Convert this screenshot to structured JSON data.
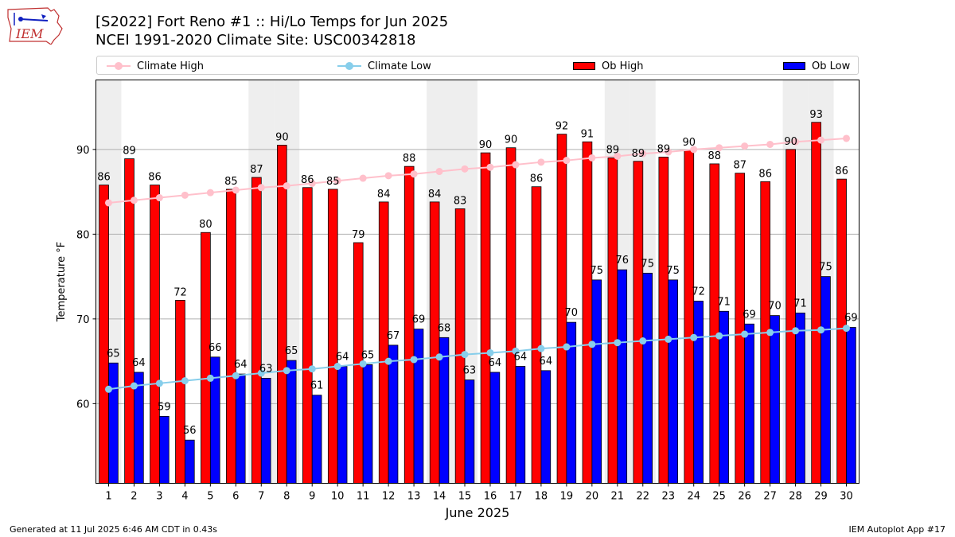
{
  "header": {
    "title_line1": "[S2022] Fort Reno #1 :: Hi/Lo Temps for Jun 2025",
    "title_line2": "NCEI 1991-2020 Climate Site: USC00342818",
    "logo_text": "IEM"
  },
  "legend": {
    "climate_high": "Climate High",
    "climate_low": "Climate Low",
    "ob_high": "Ob High",
    "ob_low": "Ob Low"
  },
  "colors": {
    "ob_high": "#ff0000",
    "ob_low": "#0000ff",
    "climate_high": "#ffc0cb",
    "climate_low": "#87ceeb",
    "weekend_band": "#eeeeee"
  },
  "footer": {
    "left": "Generated at 11 Jul 2025 6:46 AM CDT in 0.43s",
    "right": "IEM Autoplot App #17"
  },
  "chart_data": {
    "type": "bar",
    "xlabel": "June 2025",
    "ylabel": "Temperature °F",
    "ylim": [
      50.6,
      98.2
    ],
    "yticks": [
      60,
      70,
      80,
      90
    ],
    "grid": true,
    "categories": [
      "1",
      "2",
      "3",
      "4",
      "5",
      "6",
      "7",
      "8",
      "9",
      "10",
      "11",
      "12",
      "13",
      "14",
      "15",
      "16",
      "17",
      "18",
      "19",
      "20",
      "21",
      "22",
      "23",
      "24",
      "25",
      "26",
      "27",
      "28",
      "29",
      "30"
    ],
    "shaded_days": [
      1,
      7,
      8,
      14,
      15,
      21,
      22,
      28,
      29
    ],
    "series": [
      {
        "name": "Ob High",
        "kind": "bar",
        "values": [
          85.8,
          88.9,
          85.8,
          72.2,
          80.2,
          85.3,
          86.7,
          90.5,
          85.5,
          85.3,
          79.0,
          83.8,
          88.0,
          83.8,
          83.0,
          89.6,
          90.2,
          85.6,
          91.8,
          90.9,
          89.0,
          88.6,
          89.1,
          89.9,
          88.3,
          87.2,
          86.2,
          90.0,
          93.2,
          86.5
        ],
        "labels": [
          "86",
          "89",
          "86",
          "72",
          "80",
          "85",
          "87",
          "90",
          "86",
          "85",
          "79",
          "84",
          "88",
          "84",
          "83",
          "90",
          "90",
          "86",
          "92",
          "91",
          "89",
          "89",
          "89",
          "90",
          "88",
          "87",
          "86",
          "90",
          "93",
          "86"
        ]
      },
      {
        "name": "Ob Low",
        "kind": "bar",
        "values": [
          64.8,
          63.7,
          58.5,
          55.7,
          65.5,
          63.5,
          63.0,
          65.1,
          61.0,
          64.4,
          64.6,
          66.9,
          68.8,
          67.8,
          62.8,
          63.7,
          64.4,
          63.9,
          69.6,
          74.6,
          75.8,
          75.4,
          74.6,
          72.1,
          70.9,
          69.4,
          70.4,
          70.7,
          75.0,
          69.0
        ],
        "labels": [
          "65",
          "64",
          "59",
          "56",
          "66",
          "64",
          "63",
          "65",
          "61",
          "64",
          "65",
          "67",
          "69",
          "68",
          "63",
          "64",
          "64",
          "64",
          "70",
          "75",
          "76",
          "75",
          "75",
          "72",
          "71",
          "69",
          "70",
          "71",
          "75",
          "69"
        ]
      },
      {
        "name": "Climate High",
        "kind": "line",
        "values": [
          83.7,
          84.0,
          84.3,
          84.6,
          84.9,
          85.2,
          85.5,
          85.7,
          86.0,
          86.3,
          86.6,
          86.9,
          87.1,
          87.4,
          87.7,
          87.9,
          88.2,
          88.5,
          88.7,
          89.0,
          89.2,
          89.5,
          89.7,
          90.0,
          90.2,
          90.4,
          90.6,
          90.9,
          91.1,
          91.3
        ]
      },
      {
        "name": "Climate Low",
        "kind": "line",
        "values": [
          61.7,
          62.1,
          62.4,
          62.7,
          63.0,
          63.3,
          63.6,
          63.9,
          64.1,
          64.4,
          64.7,
          65.0,
          65.2,
          65.5,
          65.8,
          66.0,
          66.2,
          66.5,
          66.7,
          67.0,
          67.2,
          67.4,
          67.6,
          67.8,
          68.0,
          68.2,
          68.4,
          68.6,
          68.7,
          68.9
        ]
      }
    ]
  }
}
